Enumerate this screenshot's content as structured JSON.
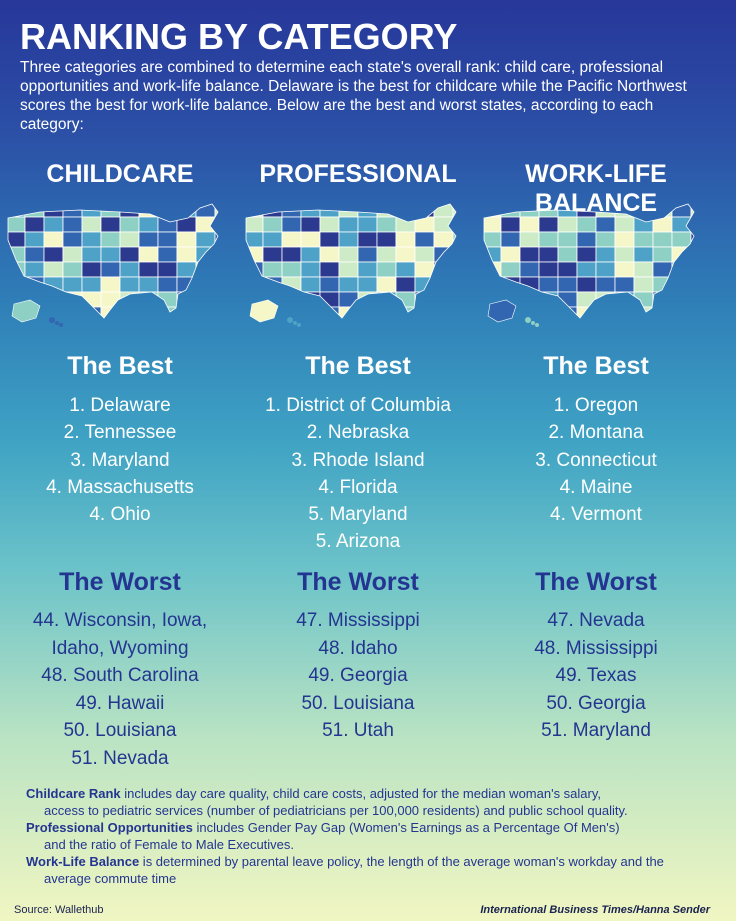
{
  "title": "RANKING BY CATEGORY",
  "intro": "Three categories are combined to determine  each state's overall rank: child care, professional opportunities and work-life balance. Delaware is the best for childcare while the Pacific Northwest scores the best for work-life balance. Below are the best and worst states, according to each category:",
  "colors": {
    "map_darkest": "#2b3a8e",
    "map_dark": "#3366b0",
    "map_mid": "#4ea2c8",
    "map_light": "#8fd0c4",
    "map_pale": "#cdebc6",
    "map_palest": "#f5f7c8"
  },
  "columns": [
    {
      "heading": "CHILDCARE",
      "best_heading": "The Best",
      "best": [
        "1. Delaware",
        "2. Tennessee",
        "3. Maryland",
        "4. Massachusetts",
        "4. Ohio"
      ],
      "worst_heading": "The Worst",
      "worst": [
        "44. Wisconsin, Iowa,",
        "Idaho, Wyoming",
        "48. South Carolina",
        "49. Hawaii",
        "50. Louisiana",
        "51. Nevada"
      ]
    },
    {
      "heading": "PROFESSIONAL",
      "best_heading": "The Best",
      "best": [
        "1. District of Columbia",
        "2. Nebraska",
        "3. Rhode Island",
        "4. Florida",
        "5. Maryland",
        "5. Arizona"
      ],
      "worst_heading": "The Worst",
      "worst": [
        "47. Mississippi",
        "48. Idaho",
        "49. Georgia",
        "50. Louisiana",
        "51. Utah"
      ]
    },
    {
      "heading": "WORK-LIFE BALANCE",
      "best_heading": "The Best",
      "best": [
        "1. Oregon",
        "2. Montana",
        "3. Connecticut",
        "4. Maine",
        "4. Vermont"
      ],
      "worst_heading": "The Worst",
      "worst": [
        "47. Nevada",
        "48. Mississippi",
        "49. Texas",
        "50. Georgia",
        "51. Maryland"
      ]
    }
  ],
  "notes": [
    {
      "term": "Childcare Rank",
      "text": " includes day care quality, child care costs, adjusted for the median woman's salary,",
      "cont": "access to pediatric services (number of pediatricians per 100,000 residents) and public school quality."
    },
    {
      "term": "Professional Opportunities",
      "text": "  includes Gender Pay Gap (Women's Earnings as a Percentage Of Men's)",
      "cont": "and the ratio of Female to Male Executives."
    },
    {
      "term": "Work-Life Balance",
      "text": " is determined by parental leave policy, the length of the average woman's workday and the",
      "cont": "average commute time"
    }
  ],
  "source": "Source: Wallethub",
  "credit": "International Business Times/Hanna Sender"
}
